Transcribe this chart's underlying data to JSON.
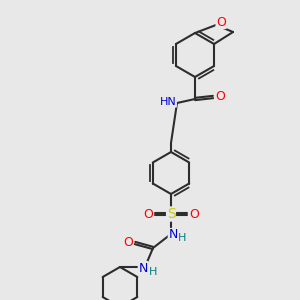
{
  "bg_color": "#e8e8e8",
  "bond_color": "#2d2d2d",
  "atom_colors": {
    "O": "#ff0000",
    "N": "#0000cc",
    "S": "#cccc00",
    "H": "#008080",
    "C": "#2d2d2d"
  },
  "figsize": [
    3.0,
    3.0
  ],
  "dpi": 100
}
